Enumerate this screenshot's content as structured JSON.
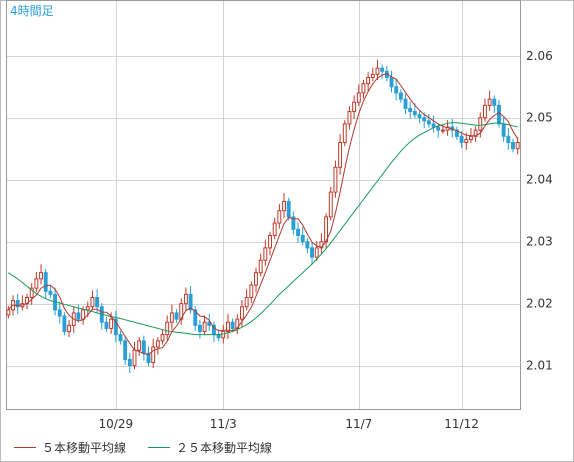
{
  "chart_data": {
    "type": "candlestick",
    "title": "4時間足",
    "ylim": [
      2.003,
      2.069
    ],
    "y_ticks": [
      "2.01",
      "2.02",
      "2.03",
      "2.04",
      "2.05",
      "2.06"
    ],
    "y_tick_values": [
      2.01,
      2.02,
      2.03,
      2.04,
      2.05,
      2.06
    ],
    "x_ticks": [
      {
        "label": "10/29",
        "index": 23
      },
      {
        "label": "11/3",
        "index": 46
      },
      {
        "label": "11/7",
        "index": 75
      },
      {
        "label": "11/12",
        "index": 97
      }
    ],
    "grid": true,
    "legend_position": "bottom-left",
    "colors": {
      "up": "#c0392b",
      "down": "#2a9fd6",
      "ma5": "#b03a2e",
      "ma25": "#1a9a5a",
      "title": "#2a9fd6",
      "grid": "#d4d4d4"
    },
    "series": [
      {
        "name": "５本移動平均線",
        "type": "line",
        "color": "#b03a2e"
      },
      {
        "name": "２５本移動平均線",
        "type": "line",
        "color": "#1a9a5a"
      }
    ],
    "close": [
      2.019,
      2.0205,
      2.0195,
      2.02,
      2.021,
      2.0225,
      2.024,
      2.025,
      2.022,
      2.0215,
      2.019,
      2.018,
      2.0155,
      2.0165,
      2.0185,
      2.0175,
      2.019,
      2.0195,
      2.021,
      2.0195,
      2.017,
      2.016,
      2.0175,
      2.015,
      2.014,
      2.011,
      2.01,
      2.0125,
      2.014,
      2.012,
      2.0105,
      2.013,
      2.014,
      2.015,
      2.017,
      2.0185,
      2.0175,
      2.02,
      2.0215,
      2.019,
      2.0165,
      2.0155,
      2.017,
      2.0165,
      2.015,
      2.0145,
      2.0155,
      2.017,
      2.016,
      2.0175,
      2.0195,
      2.021,
      2.023,
      2.025,
      2.027,
      2.029,
      2.031,
      2.033,
      2.035,
      2.0365,
      2.034,
      2.032,
      2.031,
      2.03,
      2.029,
      2.0275,
      2.029,
      2.03,
      2.034,
      2.038,
      2.042,
      2.046,
      2.049,
      2.051,
      2.0525,
      2.054,
      2.0555,
      2.0565,
      2.057,
      2.058,
      2.0575,
      2.0565,
      2.055,
      2.054,
      2.053,
      2.0515,
      2.051,
      2.0505,
      2.05,
      2.0495,
      2.049,
      2.0485,
      2.048,
      2.048,
      2.0485,
      2.048,
      2.047,
      2.046,
      2.0465,
      2.047,
      2.048,
      2.05,
      2.052,
      2.053,
      2.052,
      2.049,
      2.047,
      2.046,
      2.045,
      2.046
    ],
    "ma5": [
      2.019,
      2.0198,
      2.0197,
      2.0198,
      2.02,
      2.0207,
      2.0214,
      2.0225,
      2.0229,
      2.023,
      2.0223,
      2.0211,
      2.0192,
      2.0181,
      2.0175,
      2.0172,
      2.0174,
      2.0182,
      2.0191,
      2.0191,
      2.0186,
      2.0186,
      2.018,
      2.017,
      2.0159,
      2.0147,
      2.0136,
      2.0125,
      2.0123,
      2.0119,
      2.0118,
      2.0124,
      2.0127,
      2.0129,
      2.0139,
      2.0155,
      2.0164,
      2.0176,
      2.0189,
      2.0193,
      2.0188,
      2.018,
      2.0179,
      2.0173,
      2.0161,
      2.0156,
      2.0157,
      2.0157,
      2.0156,
      2.0161,
      2.0171,
      2.0182,
      2.0194,
      2.0212,
      2.0231,
      2.025,
      2.027,
      2.029,
      2.031,
      2.0329,
      2.0339,
      2.0337,
      2.0337,
      2.0327,
      2.0312,
      2.0299,
      2.0293,
      2.0291,
      2.0301,
      2.0317,
      2.0346,
      2.038,
      2.0418,
      2.0452,
      2.0481,
      2.0507,
      2.0527,
      2.0542,
      2.0555,
      2.0564,
      2.0569,
      2.0571,
      2.0566,
      2.0562,
      2.0552,
      2.0541,
      2.053,
      2.052,
      2.0512,
      2.0505,
      2.05,
      2.0495,
      2.049,
      2.0486,
      2.0484,
      2.0482,
      2.0479,
      2.0475,
      2.0472,
      2.0471,
      2.0471,
      2.0475,
      2.0487,
      2.0497,
      2.0504,
      2.0508,
      2.0502,
      2.0494,
      2.0478,
      2.0466
    ],
    "ma25": [
      2.025,
      2.0245,
      2.024,
      2.0234,
      2.0228,
      2.0222,
      2.0216,
      2.0212,
      2.0208,
      2.0205,
      2.0203,
      2.0201,
      2.0199,
      2.0197,
      2.0195,
      2.0193,
      2.0191,
      2.0189,
      2.0187,
      2.0185,
      2.0183,
      2.0181,
      2.0179,
      2.0178,
      2.0176,
      2.0174,
      2.0172,
      2.017,
      2.0168,
      2.0166,
      2.0164,
      2.0162,
      2.016,
      2.0158,
      2.0156,
      2.0155,
      2.0154,
      2.0153,
      2.0152,
      2.0151,
      2.015,
      2.015,
      2.015,
      2.015,
      2.015,
      2.015,
      2.0151,
      2.0153,
      2.0155,
      2.0158,
      2.0162,
      2.0166,
      2.0171,
      2.0177,
      2.0184,
      2.0191,
      2.0199,
      2.0207,
      2.0215,
      2.0222,
      2.0229,
      2.0236,
      2.0243,
      2.025,
      2.0257,
      2.0264,
      2.0272,
      2.028,
      2.0289,
      2.0298,
      2.0308,
      2.0318,
      2.0328,
      2.0338,
      2.0348,
      2.0358,
      2.0368,
      2.0378,
      2.0388,
      2.0398,
      2.0408,
      2.0418,
      2.0428,
      2.0437,
      2.0446,
      2.0454,
      2.0461,
      2.0467,
      2.0472,
      2.0476,
      2.048,
      2.0484,
      2.0487,
      2.0489,
      2.0491,
      2.0492,
      2.0492,
      2.0491,
      2.049,
      2.0489,
      2.0488,
      2.0488,
      2.0489,
      2.049,
      2.0491,
      2.0492,
      2.049,
      2.0489,
      2.0487,
      2.0485
    ]
  }
}
